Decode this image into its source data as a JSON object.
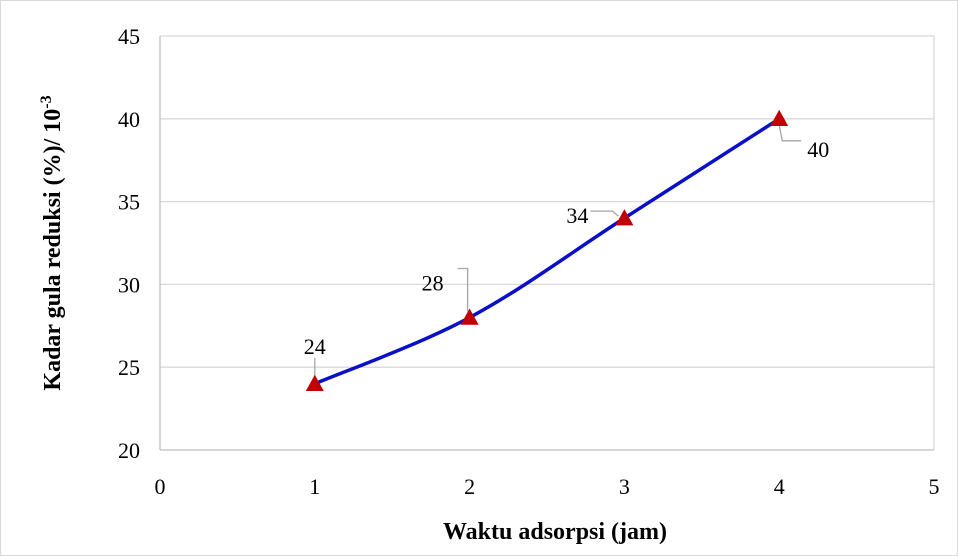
{
  "chart_data": {
    "type": "line",
    "title": "",
    "xlabel": "Waktu adsorpsi (jam)",
    "ylabel_main": "Kadar gula reduksi (%)/ 10",
    "ylabel_exponent": "-3",
    "x": [
      1,
      2,
      3,
      4
    ],
    "series": [
      {
        "values": [
          24,
          28,
          34,
          40
        ]
      }
    ],
    "data_labels": [
      "24",
      "28",
      "34",
      "40"
    ],
    "xlim": [
      0,
      5
    ],
    "ylim": [
      20,
      45
    ],
    "x_ticks": [
      "0",
      "1",
      "2",
      "3",
      "4",
      "5"
    ],
    "y_ticks": [
      "20",
      "25",
      "30",
      "35",
      "40",
      "45"
    ],
    "grid": "horizontal",
    "line_smooth": true,
    "colors": {
      "line": "#0a10c8",
      "marker": "#c00000",
      "grid": "#d9d9d9",
      "leader": "#a6a6a6"
    },
    "marker": "triangle"
  }
}
